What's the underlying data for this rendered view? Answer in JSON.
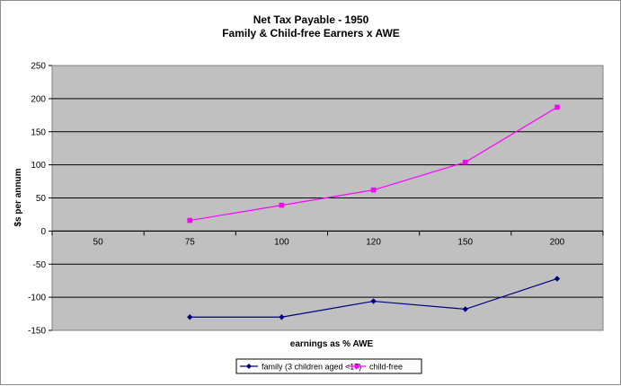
{
  "chart_data": {
    "type": "line",
    "title": "Net Tax Payable - 1950",
    "subtitle": "Family & Child-free Earners x AWE",
    "xlabel": "earnings as % AWE",
    "ylabel": "$s per annum",
    "categories": [
      "50",
      "75",
      "100",
      "120",
      "150",
      "200"
    ],
    "ylim": [
      -150,
      250
    ],
    "yticks": [
      -150,
      -100,
      -50,
      0,
      50,
      100,
      150,
      200,
      250
    ],
    "grid": true,
    "legend": "bottom",
    "series": [
      {
        "name": "family (3 children aged <17)",
        "color": "#000080",
        "marker": "diamond",
        "values": [
          null,
          -130,
          -130,
          -106,
          -118,
          -72
        ]
      },
      {
        "name": "child-free",
        "color": "#ff00ff",
        "marker": "square",
        "values": [
          null,
          16,
          39,
          62,
          104,
          187
        ]
      }
    ],
    "colors": {
      "plot_bg": "#c0c0c0",
      "gridline": "#000000"
    }
  }
}
